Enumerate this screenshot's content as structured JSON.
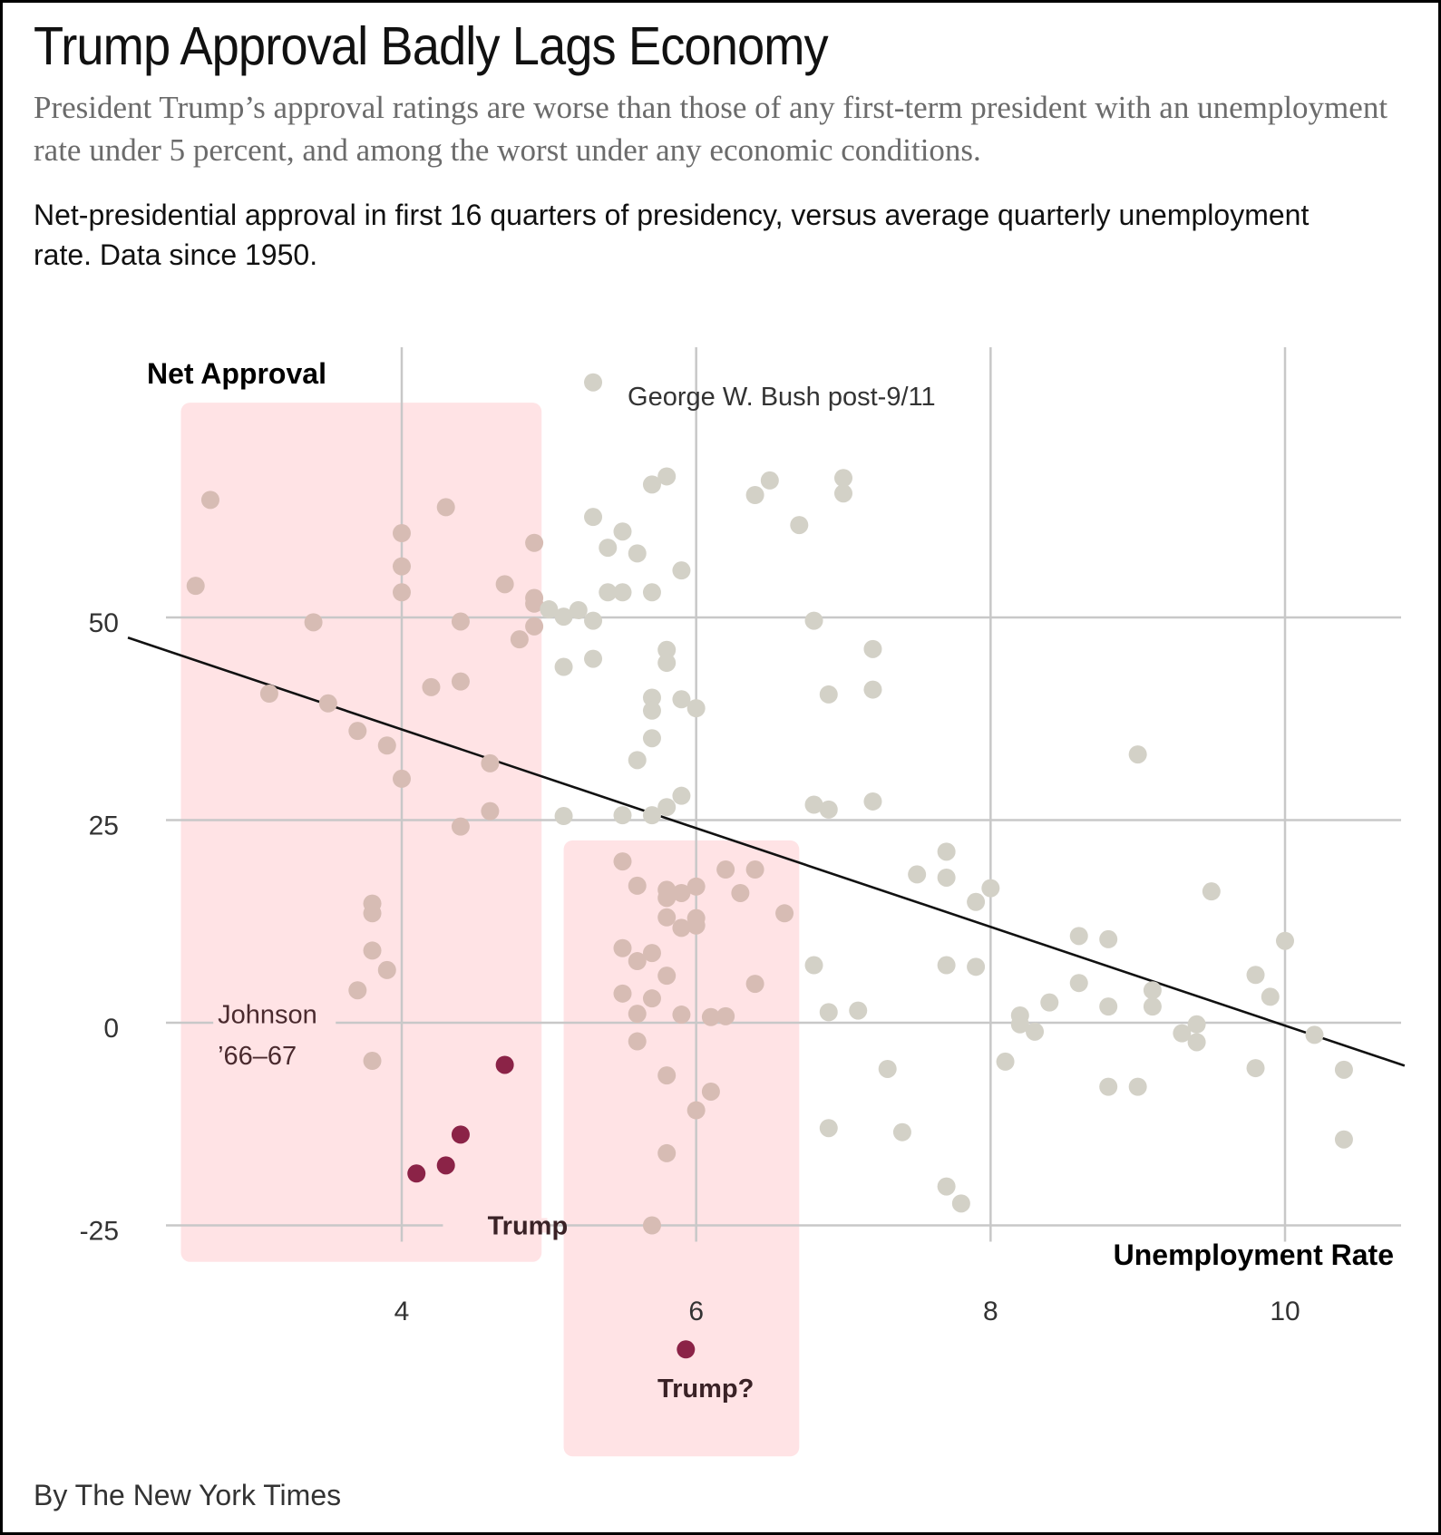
{
  "header": {
    "title": "Trump Approval Badly Lags Economy",
    "subtitle": "President Trump’s approval ratings are worse than those of any first-term president with an unemployment rate under 5 percent, and among the worst under any economic conditions.",
    "description": "Net-presidential approval in first 16 quarters of presidency, versus average quarterly unemployment rate. Data since 1950."
  },
  "footer": {
    "credit": "By The New York Times"
  },
  "colors": {
    "dot": "#d3d1c7",
    "dot_in_band": "#d7bcb4",
    "trump": "#8b2347",
    "band": "#ffe3e5",
    "grid": "#c8c8c8",
    "trend": "#111111"
  },
  "chart_data": {
    "type": "scatter",
    "title": "Trump Approval Badly Lags Economy",
    "xlabel": "Unemployment Rate",
    "ylabel": "Net Approval",
    "xlim": [
      2.3,
      10.8
    ],
    "ylim": [
      -25,
      75
    ],
    "x_ticks": [
      4,
      6,
      8,
      10
    ],
    "x_tick_labels": [
      "4",
      "6",
      "8",
      "10"
    ],
    "y_ticks": [
      50,
      25,
      0,
      -25
    ],
    "y_tick_labels": [
      "50",
      "25",
      "0",
      "-25"
    ],
    "grid": true,
    "trend_line": {
      "x": [
        2.3,
        10.8
      ],
      "y": [
        47.4,
        -5.3
      ]
    },
    "highlight_bands": [
      {
        "name": "Unemployment under 5 percent",
        "x_range": [
          2.5,
          4.95
        ],
        "y_range": [
          -29.5,
          76.5
        ]
      },
      {
        "name": "Unemployment around 6 percent",
        "x_range": [
          5.1,
          6.7
        ],
        "y_range": [
          -53.5,
          22.5
        ]
      }
    ],
    "annotations": [
      {
        "text": "George W. Bush post-9/11",
        "x": 5.3,
        "y": 78.5
      },
      {
        "text": "Johnson",
        "x": 2.75,
        "y": 0.3
      },
      {
        "text": "’66–67",
        "x": 2.75,
        "y": -3.9
      },
      {
        "text": "Trump",
        "x": 4.72,
        "y": -25.0
      },
      {
        "text": "Trump?",
        "x": 6.04,
        "y": -44.8
      }
    ],
    "series": [
      {
        "name": "Other presidents",
        "points": [
          [
            2.7,
            64.5
          ],
          [
            2.6,
            53.9
          ],
          [
            3.4,
            49.4
          ],
          [
            3.1,
            40.6
          ],
          [
            3.5,
            39.4
          ],
          [
            3.7,
            36.0
          ],
          [
            3.9,
            34.2
          ],
          [
            4.0,
            60.4
          ],
          [
            4.0,
            56.3
          ],
          [
            4.0,
            53.1
          ],
          [
            4.0,
            30.1
          ],
          [
            4.3,
            63.6
          ],
          [
            4.4,
            49.5
          ],
          [
            4.2,
            41.4
          ],
          [
            4.4,
            42.1
          ],
          [
            4.7,
            54.1
          ],
          [
            4.9,
            59.2
          ],
          [
            4.9,
            52.4
          ],
          [
            4.9,
            51.7
          ],
          [
            4.9,
            48.9
          ],
          [
            4.8,
            47.3
          ],
          [
            4.6,
            32.0
          ],
          [
            4.6,
            26.1
          ],
          [
            4.4,
            24.2
          ],
          [
            3.8,
            14.7
          ],
          [
            3.8,
            13.5
          ],
          [
            3.8,
            8.9
          ],
          [
            3.9,
            6.5
          ],
          [
            3.7,
            4.0
          ],
          [
            3.8,
            -4.7
          ],
          [
            5.3,
            79.0
          ],
          [
            5.1,
            25.5
          ],
          [
            5.0,
            51.0
          ],
          [
            5.1,
            50.1
          ],
          [
            5.2,
            50.9
          ],
          [
            5.3,
            49.6
          ],
          [
            5.1,
            43.9
          ],
          [
            5.3,
            44.9
          ],
          [
            5.3,
            62.4
          ],
          [
            5.5,
            60.6
          ],
          [
            5.4,
            58.6
          ],
          [
            5.6,
            57.9
          ],
          [
            5.4,
            53.1
          ],
          [
            5.5,
            53.1
          ],
          [
            5.7,
            53.1
          ],
          [
            5.7,
            66.4
          ],
          [
            5.8,
            67.4
          ],
          [
            5.9,
            55.8
          ],
          [
            5.8,
            46.0
          ],
          [
            5.8,
            44.4
          ],
          [
            5.7,
            40.1
          ],
          [
            5.7,
            38.5
          ],
          [
            5.9,
            39.9
          ],
          [
            6.0,
            38.8
          ],
          [
            5.7,
            35.1
          ],
          [
            5.6,
            32.4
          ],
          [
            5.9,
            28.0
          ],
          [
            5.8,
            26.6
          ],
          [
            5.7,
            25.6
          ],
          [
            5.5,
            25.6
          ],
          [
            6.4,
            65.1
          ],
          [
            6.5,
            66.9
          ],
          [
            6.7,
            61.4
          ],
          [
            7.0,
            67.2
          ],
          [
            7.0,
            65.3
          ],
          [
            6.8,
            49.6
          ],
          [
            7.2,
            46.1
          ],
          [
            6.9,
            40.5
          ],
          [
            7.2,
            41.1
          ],
          [
            6.8,
            26.9
          ],
          [
            6.9,
            26.3
          ],
          [
            7.2,
            27.3
          ],
          [
            9.0,
            33.1
          ],
          [
            7.7,
            21.1
          ],
          [
            7.7,
            17.9
          ],
          [
            7.5,
            18.3
          ],
          [
            7.9,
            14.9
          ],
          [
            8.0,
            16.6
          ],
          [
            9.5,
            16.2
          ],
          [
            6.8,
            7.1
          ],
          [
            7.7,
            7.1
          ],
          [
            7.9,
            6.9
          ],
          [
            8.6,
            10.7
          ],
          [
            8.8,
            10.3
          ],
          [
            10.0,
            10.1
          ],
          [
            6.9,
            1.3
          ],
          [
            7.1,
            1.5
          ],
          [
            8.2,
            0.9
          ],
          [
            8.2,
            -0.2
          ],
          [
            8.3,
            -1.1
          ],
          [
            8.4,
            2.5
          ],
          [
            8.6,
            4.9
          ],
          [
            8.8,
            2.0
          ],
          [
            9.1,
            4.0
          ],
          [
            9.1,
            2.0
          ],
          [
            9.3,
            -1.3
          ],
          [
            9.4,
            -0.2
          ],
          [
            9.4,
            -2.4
          ],
          [
            9.8,
            5.9
          ],
          [
            9.9,
            3.2
          ],
          [
            10.2,
            -1.5
          ],
          [
            8.1,
            -4.8
          ],
          [
            7.3,
            -5.7
          ],
          [
            8.8,
            -7.9
          ],
          [
            9.0,
            -7.9
          ],
          [
            9.8,
            -5.6
          ],
          [
            10.4,
            -5.8
          ],
          [
            6.9,
            -13.0
          ],
          [
            7.4,
            -13.5
          ],
          [
            7.7,
            -20.2
          ],
          [
            7.8,
            -22.3
          ],
          [
            10.4,
            -14.4
          ]
        ]
      },
      {
        "name": "Band around 6 percent",
        "points": [
          [
            5.5,
            19.9
          ],
          [
            5.6,
            16.9
          ],
          [
            5.8,
            16.4
          ],
          [
            5.8,
            15.4
          ],
          [
            5.9,
            16.0
          ],
          [
            6.0,
            16.8
          ],
          [
            5.8,
            13.0
          ],
          [
            6.0,
            12.9
          ],
          [
            6.0,
            12.0
          ],
          [
            5.9,
            11.7
          ],
          [
            6.2,
            18.9
          ],
          [
            6.4,
            18.9
          ],
          [
            6.3,
            16.0
          ],
          [
            6.6,
            13.5
          ],
          [
            5.5,
            9.2
          ],
          [
            5.6,
            7.6
          ],
          [
            5.7,
            8.6
          ],
          [
            5.8,
            5.8
          ],
          [
            6.4,
            4.8
          ],
          [
            5.5,
            3.6
          ],
          [
            5.7,
            3.0
          ],
          [
            5.6,
            1.1
          ],
          [
            5.9,
            1.0
          ],
          [
            6.1,
            0.7
          ],
          [
            6.2,
            0.8
          ],
          [
            5.6,
            -2.3
          ],
          [
            5.8,
            -6.5
          ],
          [
            6.1,
            -8.5
          ],
          [
            6.0,
            -10.8
          ],
          [
            5.8,
            -16.1
          ],
          [
            5.7,
            -25.0
          ]
        ]
      },
      {
        "name": "Trump",
        "points": [
          [
            4.1,
            -18.6
          ],
          [
            4.3,
            -17.6
          ],
          [
            4.4,
            -13.8
          ],
          [
            4.7,
            -5.2
          ]
        ]
      },
      {
        "name": "Trump?",
        "points": [
          [
            5.93,
            -40.3
          ]
        ]
      }
    ]
  }
}
